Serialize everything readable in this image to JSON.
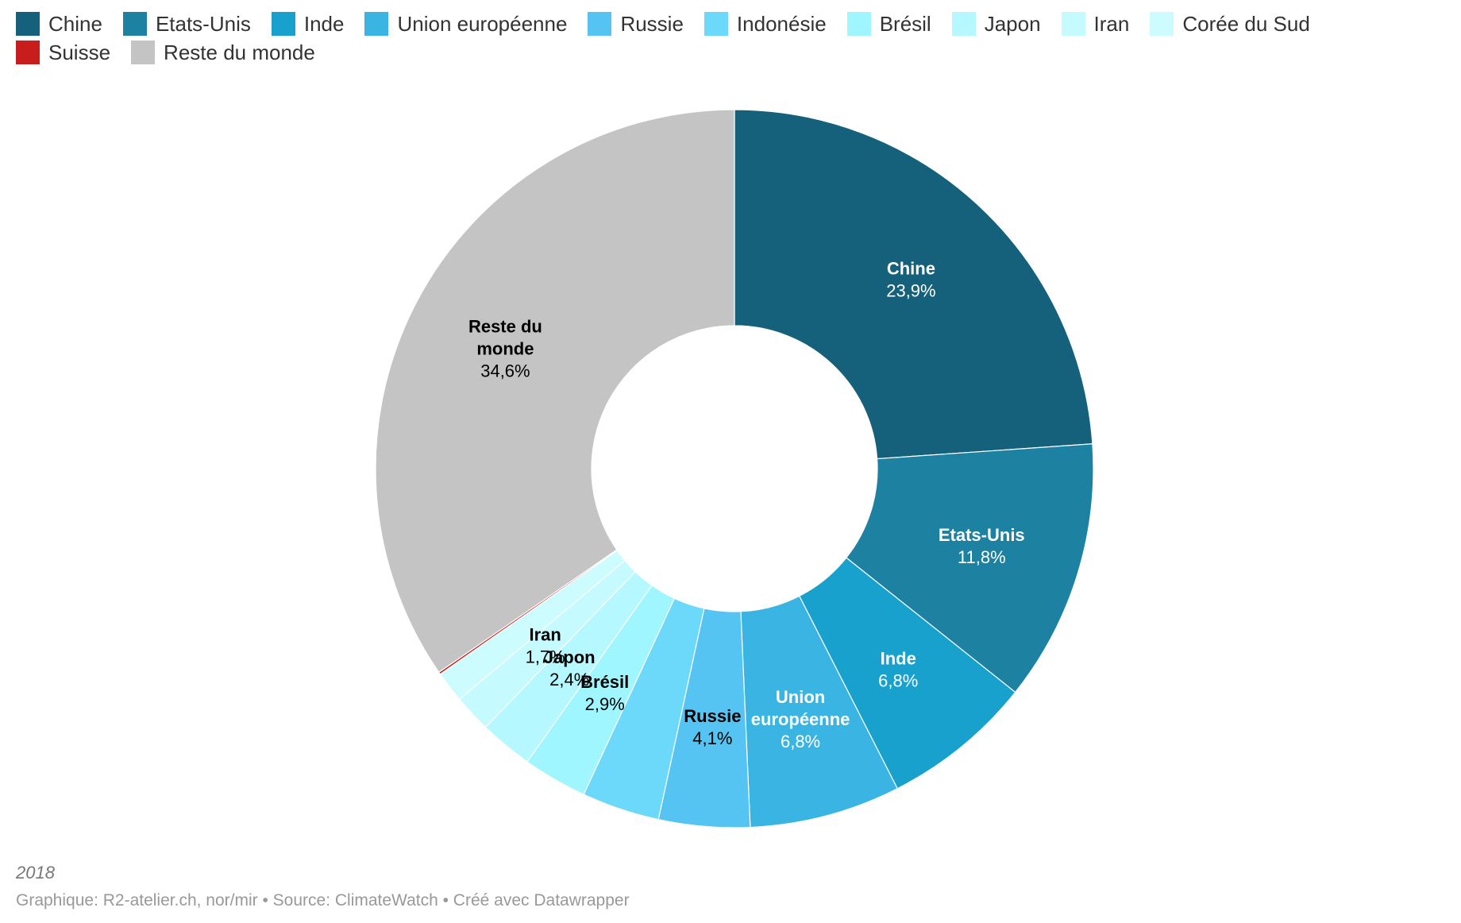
{
  "chart_data": {
    "type": "pie",
    "variant": "donut",
    "categories": [
      "Chine",
      "Etats-Unis",
      "Inde",
      "Union européenne",
      "Russie",
      "Indonésie",
      "Brésil",
      "Japon",
      "Iran",
      "Corée du Sud",
      "Suisse",
      "Reste du monde"
    ],
    "values": [
      23.9,
      11.8,
      6.8,
      6.8,
      4.1,
      3.5,
      2.9,
      2.4,
      1.7,
      1.4,
      0.1,
      34.6
    ],
    "value_labels": [
      "23,9%",
      "11,8%",
      "6,8%",
      "6,8%",
      "4,1%",
      "",
      "2,9%",
      "2,4%",
      "1,7%",
      "",
      "",
      "34,6%"
    ],
    "slice_labels": [
      [
        "Chine"
      ],
      [
        "Etats-Unis"
      ],
      [
        "Inde"
      ],
      [
        "Union",
        "européenne"
      ],
      [
        "Russie"
      ],
      [],
      [
        "Brésil"
      ],
      [
        "Japon"
      ],
      [
        "Iran"
      ],
      [],
      [],
      [
        "Reste du",
        "monde"
      ]
    ],
    "colors": [
      "#15607a",
      "#1d81a2",
      "#18a1cd",
      "#3ab5e3",
      "#55c4f2",
      "#6cd9fb",
      "#9ff6ff",
      "#b5f8ff",
      "#c5faff",
      "#cdfcff",
      "#c71e1d",
      "#c4c4c4"
    ],
    "label_colors": [
      "#ffffff",
      "#ffffff",
      "#ffffff",
      "#ffffff",
      "#000000",
      "#000000",
      "#000000",
      "#000000",
      "#000000",
      "#000000",
      "#000000",
      "#000000"
    ],
    "legend_position": "top"
  },
  "footer": {
    "year": "2018",
    "credit": "Graphique: R2-atelier.ch, nor/mir • Source: ClimateWatch • Créé avec Datawrapper"
  }
}
